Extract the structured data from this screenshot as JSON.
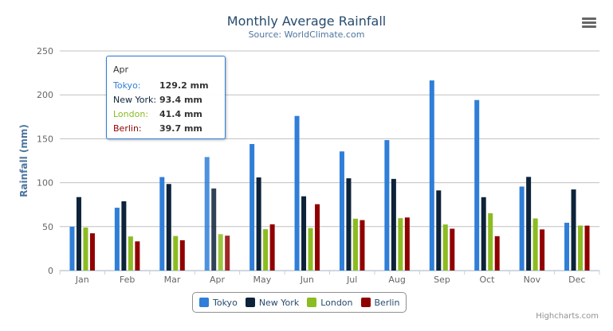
{
  "chart_data": {
    "type": "bar",
    "title": "Monthly Average Rainfall",
    "subtitle": "Source: WorldClimate.com",
    "ylabel": "Rainfall (mm)",
    "xlabel": "",
    "ylim": [
      0,
      250
    ],
    "yticks": [
      0,
      50,
      100,
      150,
      200,
      250
    ],
    "grid": true,
    "legend_position": "bottom",
    "categories": [
      "Jan",
      "Feb",
      "Mar",
      "Apr",
      "May",
      "Jun",
      "Jul",
      "Aug",
      "Sep",
      "Oct",
      "Nov",
      "Dec"
    ],
    "series": [
      {
        "name": "Tokyo",
        "color": "#2f7ed8",
        "values": [
          49.9,
          71.5,
          106.4,
          129.2,
          144.0,
          176.0,
          135.6,
          148.5,
          216.4,
          194.1,
          95.6,
          54.4
        ]
      },
      {
        "name": "New York",
        "color": "#0d233a",
        "values": [
          83.6,
          78.8,
          98.5,
          93.4,
          106.0,
          84.5,
          105.0,
          104.3,
          91.2,
          83.5,
          106.6,
          92.3
        ]
      },
      {
        "name": "London",
        "color": "#8bbc21",
        "values": [
          48.9,
          38.8,
          39.3,
          41.4,
          47.0,
          48.3,
          59.0,
          59.6,
          52.4,
          65.2,
          59.3,
          51.2
        ]
      },
      {
        "name": "Berlin",
        "color": "#910000",
        "values": [
          42.4,
          33.2,
          34.5,
          39.7,
          52.6,
          75.5,
          57.4,
          60.4,
          47.6,
          39.1,
          46.8,
          51.1
        ]
      }
    ]
  },
  "tooltip": {
    "header": "Apr",
    "rows": [
      {
        "name": "Tokyo:",
        "value": "129.2 mm"
      },
      {
        "name": "New York:",
        "value": "93.4 mm"
      },
      {
        "name": "London:",
        "value": "41.4 mm"
      },
      {
        "name": "Berlin:",
        "value": "39.7 mm"
      }
    ]
  },
  "credits": "Highcharts.com",
  "menu_icon": "hamburger-menu-icon"
}
